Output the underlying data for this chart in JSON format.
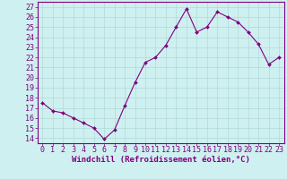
{
  "x": [
    0,
    1,
    2,
    3,
    4,
    5,
    6,
    7,
    8,
    9,
    10,
    11,
    12,
    13,
    14,
    15,
    16,
    17,
    18,
    19,
    20,
    21,
    22,
    23
  ],
  "y": [
    17.5,
    16.7,
    16.5,
    16.0,
    15.5,
    15.0,
    13.9,
    14.8,
    17.2,
    19.5,
    21.5,
    22.0,
    23.2,
    25.0,
    26.8,
    24.5,
    25.0,
    26.5,
    26.0,
    25.5,
    24.5,
    23.3,
    21.3,
    22.0
  ],
  "line_color": "#800080",
  "marker": "D",
  "marker_size": 2.0,
  "bg_color": "#cff0f0",
  "grid_color": "#b0d8d8",
  "xlabel": "Windchill (Refroidissement éolien,°C)",
  "ylabel_ticks": [
    14,
    15,
    16,
    17,
    18,
    19,
    20,
    21,
    22,
    23,
    24,
    25,
    26,
    27
  ],
  "xlim": [
    -0.5,
    23.5
  ],
  "ylim": [
    13.5,
    27.5
  ],
  "xlabel_fontsize": 6.5,
  "tick_fontsize": 6.0
}
